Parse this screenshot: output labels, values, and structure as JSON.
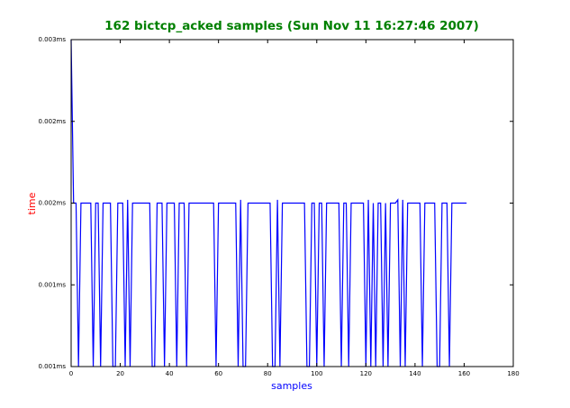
{
  "chart_data": {
    "type": "line",
    "title": "162 bictcp_acked samples (Sun Nov 11 16:27:46 2007)",
    "xlabel": "samples",
    "ylabel": "time",
    "color": "#0000ff",
    "x": [
      0,
      1,
      2,
      3,
      4,
      5,
      6,
      7,
      8,
      9,
      10,
      11,
      12,
      13,
      14,
      15,
      16,
      17,
      18,
      19,
      20,
      21,
      22,
      23,
      24,
      25,
      26,
      27,
      28,
      29,
      30,
      31,
      32,
      33,
      34,
      35,
      36,
      37,
      38,
      39,
      40,
      41,
      42,
      43,
      44,
      45,
      46,
      47,
      48,
      49,
      50,
      51,
      52,
      53,
      54,
      55,
      56,
      57,
      58,
      59,
      60,
      61,
      62,
      63,
      64,
      65,
      66,
      67,
      68,
      69,
      70,
      71,
      72,
      73,
      74,
      75,
      76,
      77,
      78,
      79,
      80,
      81,
      82,
      83,
      84,
      85,
      86,
      87,
      88,
      89,
      90,
      91,
      92,
      93,
      94,
      95,
      96,
      97,
      98,
      99,
      100,
      101,
      102,
      103,
      104,
      105,
      106,
      107,
      108,
      109,
      110,
      111,
      112,
      113,
      114,
      115,
      116,
      117,
      118,
      119,
      120,
      121,
      122,
      123,
      124,
      125,
      126,
      127,
      128,
      129,
      130,
      131,
      132,
      133,
      134,
      135,
      136,
      137,
      138,
      139,
      140,
      141,
      142,
      143,
      144,
      145,
      146,
      147,
      148,
      149,
      150,
      151,
      152,
      153,
      154,
      155,
      156,
      157,
      158,
      159,
      160,
      161
    ],
    "values": [
      0.003,
      0.002,
      0.002,
      0.001,
      0.002,
      0.002,
      0.002,
      0.002,
      0.002,
      0.001,
      0.002,
      0.002,
      0.001,
      0.002,
      0.002,
      0.002,
      0.002,
      0.001,
      0.001,
      0.002,
      0.002,
      0.002,
      0.001,
      0.00202,
      0.001,
      0.002,
      0.002,
      0.002,
      0.002,
      0.002,
      0.002,
      0.002,
      0.002,
      0.001,
      0.001,
      0.002,
      0.002,
      0.002,
      0.001,
      0.002,
      0.002,
      0.002,
      0.002,
      0.001,
      0.002,
      0.002,
      0.002,
      0.001,
      0.002,
      0.002,
      0.002,
      0.002,
      0.002,
      0.002,
      0.002,
      0.002,
      0.002,
      0.002,
      0.002,
      0.001,
      0.002,
      0.002,
      0.002,
      0.002,
      0.002,
      0.002,
      0.002,
      0.002,
      0.001,
      0.00202,
      0.001,
      0.001,
      0.002,
      0.002,
      0.002,
      0.002,
      0.002,
      0.002,
      0.002,
      0.002,
      0.002,
      0.002,
      0.001,
      0.001,
      0.00202,
      0.001,
      0.002,
      0.002,
      0.002,
      0.002,
      0.002,
      0.002,
      0.002,
      0.002,
      0.002,
      0.002,
      0.001,
      0.001,
      0.002,
      0.002,
      0.001,
      0.002,
      0.002,
      0.001,
      0.002,
      0.002,
      0.002,
      0.002,
      0.002,
      0.002,
      0.001,
      0.002,
      0.002,
      0.001,
      0.002,
      0.002,
      0.002,
      0.002,
      0.002,
      0.002,
      0.001,
      0.00202,
      0.001,
      0.002,
      0.001,
      0.002,
      0.002,
      0.001,
      0.002,
      0.001,
      0.002,
      0.002,
      0.002,
      0.00202,
      0.001,
      0.00202,
      0.001,
      0.002,
      0.002,
      0.002,
      0.002,
      0.002,
      0.002,
      0.001,
      0.002,
      0.002,
      0.002,
      0.002,
      0.002,
      0.001,
      0.001,
      0.002,
      0.002,
      0.002,
      0.001,
      0.002,
      0.002,
      0.002,
      0.002,
      0.002,
      0.002,
      0.002
    ],
    "xlim": [
      0,
      180
    ],
    "xticks": [
      0,
      20,
      40,
      60,
      80,
      100,
      120,
      140,
      160,
      180
    ],
    "ylim": [
      0.001,
      0.003
    ],
    "yticks": [
      {
        "value": 0.001,
        "label": "0.001ms"
      },
      {
        "value": 0.0015,
        "label": "0.001ms"
      },
      {
        "value": 0.002,
        "label": "0.002ms"
      },
      {
        "value": 0.0025,
        "label": "0.002ms"
      },
      {
        "value": 0.003,
        "label": "0.003ms"
      }
    ]
  }
}
